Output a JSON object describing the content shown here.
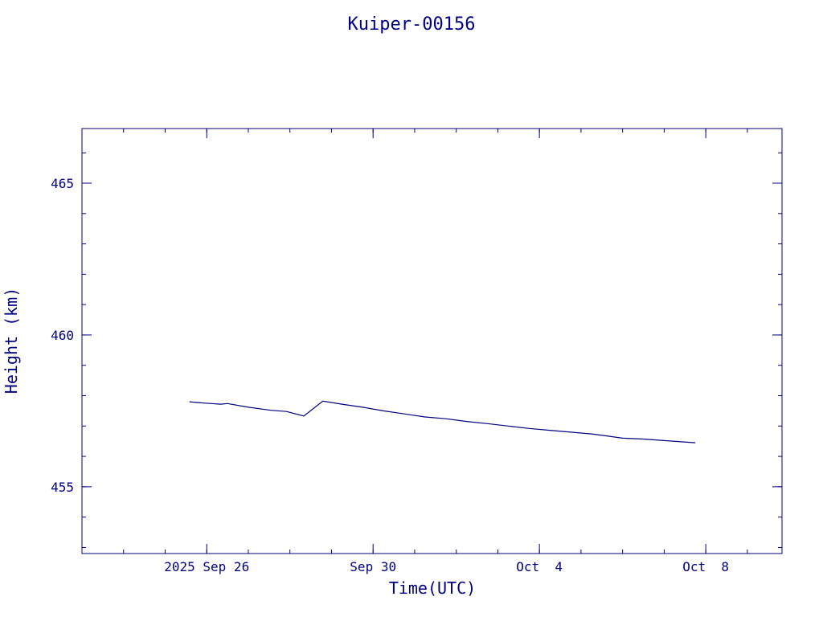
{
  "chart_data": {
    "type": "line",
    "title": "Kuiper-00156",
    "xlabel": "Time(UTC)",
    "ylabel": "Height (km)",
    "color": "#000080",
    "xlim": [
      "2025-09-23T00:00:00Z",
      "2025-10-09T20:00:00Z"
    ],
    "ylim": [
      452.8,
      466.8
    ],
    "x_ticks": [
      {
        "date": "2025-09-26T00:00:00Z",
        "label": "2025 Sep 26"
      },
      {
        "date": "2025-09-30T00:00:00Z",
        "label": "Sep 30"
      },
      {
        "date": "2025-10-04T00:00:00Z",
        "label": "Oct  4"
      },
      {
        "date": "2025-10-08T00:00:00Z",
        "label": "Oct  8"
      }
    ],
    "y_ticks": [
      455,
      460,
      465
    ],
    "grid": false,
    "series": [
      {
        "x": [
          "2025-09-25T14:00:00Z",
          "2025-09-25T22:00:00Z",
          "2025-09-26T08:00:00Z",
          "2025-09-26T12:00:00Z",
          "2025-09-27T00:00:00Z",
          "2025-09-27T13:00:00Z",
          "2025-09-27T22:00:00Z",
          "2025-09-28T08:00:00Z",
          "2025-09-28T19:00:00Z",
          "2025-09-29T06:00:00Z",
          "2025-09-29T18:00:00Z",
          "2025-09-30T06:00:00Z",
          "2025-09-30T18:00:00Z",
          "2025-10-01T06:00:00Z",
          "2025-10-01T18:00:00Z",
          "2025-10-02T06:00:00Z",
          "2025-10-02T18:00:00Z",
          "2025-10-03T06:00:00Z",
          "2025-10-03T18:00:00Z",
          "2025-10-04T06:00:00Z",
          "2025-10-04T18:00:00Z",
          "2025-10-05T06:00:00Z",
          "2025-10-05T14:00:00Z",
          "2025-10-06T00:00:00Z",
          "2025-10-06T12:00:00Z",
          "2025-10-07T00:00:00Z",
          "2025-10-07T18:00:00Z"
        ],
        "y": [
          457.8,
          457.76,
          457.72,
          457.74,
          457.62,
          457.52,
          457.48,
          457.33,
          457.82,
          457.72,
          457.62,
          457.5,
          457.4,
          457.3,
          457.24,
          457.15,
          457.08,
          457.0,
          456.92,
          456.86,
          456.8,
          456.74,
          456.68,
          456.6,
          456.57,
          456.52,
          456.45
        ]
      }
    ]
  }
}
